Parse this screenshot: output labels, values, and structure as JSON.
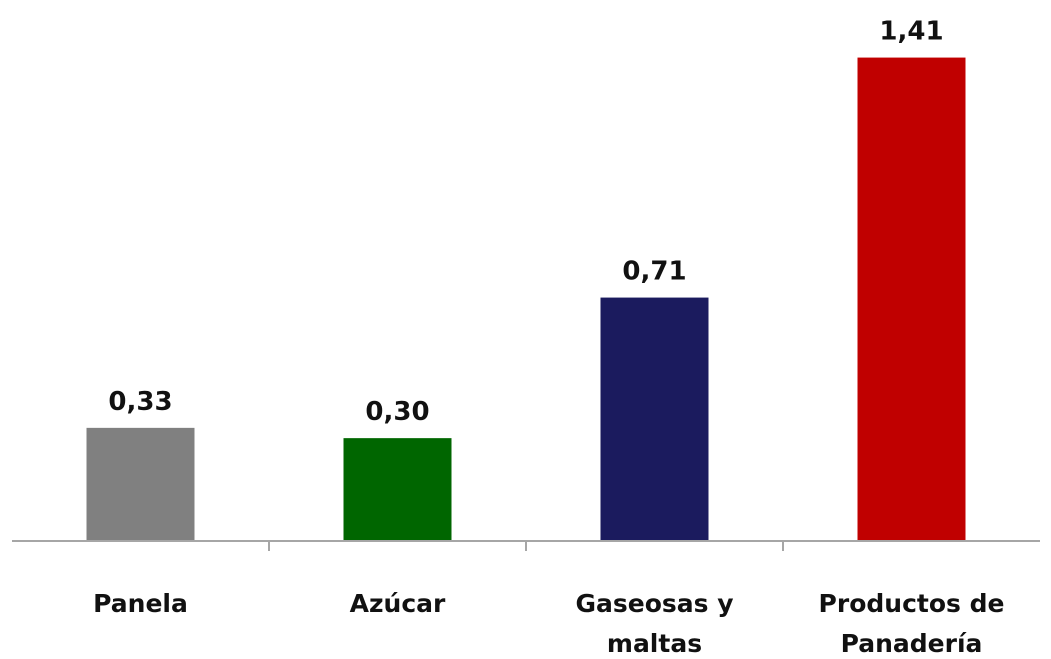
{
  "chart_data": {
    "type": "bar",
    "categories": [
      [
        "Panela"
      ],
      [
        "Azúcar"
      ],
      [
        "Gaseosas y",
        "maltas"
      ],
      [
        "Productos de",
        "Panadería"
      ]
    ],
    "values": [
      0.33,
      0.3,
      0.71,
      1.41
    ],
    "value_labels": [
      "0,33",
      "0,30",
      "0,71",
      "1,41"
    ],
    "colors": [
      "#808080",
      "#006600",
      "#1b1b5e",
      "#c00000"
    ],
    "title": "",
    "xlabel": "",
    "ylabel": "",
    "ylim": [
      0,
      1.47
    ],
    "grid": false,
    "legend": "none"
  }
}
